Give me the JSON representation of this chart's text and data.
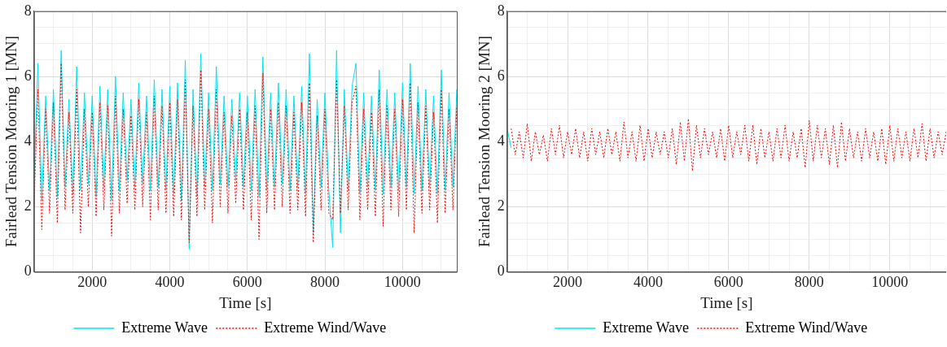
{
  "chart_data": [
    {
      "type": "line",
      "xlabel": "Time [s]",
      "ylabel": "Fairlead Tension Mooring 1 [MN]",
      "xlim": [
        500,
        11400
      ],
      "ylim": [
        0,
        8
      ],
      "grid": true,
      "legend": "bottom",
      "marker": "none",
      "xticks": [
        {
          "value": 500,
          "label": null
        },
        {
          "value": 1000,
          "label": null
        },
        {
          "value": 1500,
          "label": null
        },
        2000,
        {
          "value": 2500,
          "label": null
        },
        {
          "value": 3000,
          "label": null
        },
        {
          "value": 3500,
          "label": null
        },
        4000,
        {
          "value": 4500,
          "label": null
        },
        {
          "value": 5000,
          "label": null
        },
        {
          "value": 5500,
          "label": null
        },
        6000,
        {
          "value": 6500,
          "label": null
        },
        {
          "value": 7000,
          "label": null
        },
        {
          "value": 7500,
          "label": null
        },
        8000,
        {
          "value": 8500,
          "label": null
        },
        {
          "value": 9000,
          "label": null
        },
        {
          "value": 9500,
          "label": null
        },
        10000,
        {
          "value": 10500,
          "label": null
        },
        {
          "value": 11000,
          "label": null
        }
      ],
      "yticks": [
        0,
        {
          "value": 0.5,
          "label": null
        },
        {
          "value": 1,
          "label": null
        },
        {
          "value": 1.5,
          "label": null
        },
        2,
        {
          "value": 2.5,
          "label": null
        },
        {
          "value": 3,
          "label": null
        },
        {
          "value": 3.5,
          "label": null
        },
        4,
        {
          "value": 4.5,
          "label": null
        },
        {
          "value": 5,
          "label": null
        },
        {
          "value": 5.5,
          "label": null
        },
        6,
        {
          "value": 6.5,
          "label": null
        },
        {
          "value": 7,
          "label": null
        },
        {
          "value": 7.5,
          "label": null
        },
        8
      ],
      "x": [
        500,
        600,
        700,
        800,
        900,
        1000,
        1100,
        1200,
        1300,
        1400,
        1500,
        1600,
        1700,
        1800,
        1900,
        2000,
        2100,
        2200,
        2300,
        2400,
        2500,
        2600,
        2700,
        2800,
        2900,
        3000,
        3100,
        3200,
        3300,
        3400,
        3500,
        3600,
        3700,
        3800,
        3900,
        4000,
        4100,
        4200,
        4300,
        4400,
        4500,
        4600,
        4700,
        4800,
        4900,
        5000,
        5100,
        5200,
        5300,
        5400,
        5500,
        5600,
        5700,
        5800,
        5900,
        6000,
        6100,
        6200,
        6300,
        6400,
        6500,
        6600,
        6700,
        6800,
        6900,
        7000,
        7100,
        7200,
        7300,
        7400,
        7500,
        7600,
        7700,
        7800,
        7900,
        8000,
        8100,
        8200,
        8300,
        8400,
        8500,
        8600,
        8700,
        8800,
        8900,
        9000,
        9100,
        9200,
        9300,
        9400,
        9500,
        9600,
        9700,
        9800,
        9900,
        10000,
        10100,
        10200,
        10300,
        10400,
        10500,
        10600,
        10700,
        10800,
        10900,
        11000,
        11100,
        11200,
        11300,
        11400
      ],
      "series": [
        {
          "name": "Extreme Wave",
          "color": "#00e5ee",
          "line_style": "solid",
          "values": [
            2.8,
            6.4,
            2.2,
            5.4,
            2.5,
            5.6,
            2.3,
            6.8,
            2.6,
            5.3,
            2.4,
            6.3,
            2.5,
            5.5,
            2.7,
            5.4,
            2.3,
            5.7,
            2.6,
            5.6,
            2.2,
            6.0,
            2.5,
            5.5,
            2.8,
            5.3,
            2.6,
            5.8,
            2.7,
            5.4,
            2.5,
            5.9,
            2.6,
            5.6,
            2.5,
            5.7,
            2.4,
            5.8,
            2.2,
            6.5,
            0.7,
            5.6,
            2.3,
            6.7,
            2.6,
            5.5,
            2.5,
            6.3,
            2.7,
            5.4,
            2.6,
            5.3,
            2.8,
            5.5,
            2.6,
            5.4,
            2.5,
            5.6,
            2.3,
            6.6,
            2.5,
            5.5,
            2.6,
            5.8,
            2.7,
            5.6,
            2.5,
            5.4,
            2.6,
            5.7,
            2.4,
            6.7,
            1.2,
            5.3,
            2.6,
            5.5,
            2.5,
            0.75,
            6.8,
            1.2,
            5.6,
            2.5,
            5.7,
            6.4,
            2.4,
            5.5,
            2.6,
            5.4,
            2.5,
            6.2,
            2.4,
            5.6,
            2.6,
            5.5,
            2.5,
            5.8,
            2.6,
            6.4,
            2.4,
            5.7,
            2.5,
            5.6,
            2.6,
            5.4,
            2.4,
            6.2,
            2.5,
            5.5,
            2.6,
            5.6
          ]
        },
        {
          "name": "Extreme Wind/Wave",
          "color": "#ff0000",
          "line_style": "dotted",
          "values": [
            2.0,
            5.6,
            1.3,
            5.0,
            1.8,
            5.2,
            1.5,
            6.4,
            1.9,
            4.9,
            1.8,
            5.6,
            1.2,
            5.0,
            2.0,
            4.9,
            1.7,
            5.2,
            1.9,
            5.1,
            1.1,
            5.4,
            1.8,
            5.0,
            2.1,
            4.8,
            1.9,
            5.3,
            2.0,
            4.9,
            1.6,
            5.4,
            1.9,
            5.1,
            1.8,
            5.2,
            1.7,
            5.3,
            1.6,
            5.9,
            0.9,
            5.1,
            1.7,
            6.2,
            1.9,
            5.0,
            1.5,
            5.6,
            2.0,
            4.9,
            1.8,
            4.8,
            2.1,
            5.0,
            1.9,
            4.9,
            1.6,
            5.1,
            1.0,
            6.1,
            1.8,
            5.0,
            1.9,
            5.2,
            2.0,
            5.1,
            1.8,
            4.9,
            1.9,
            5.2,
            1.7,
            5.8,
            0.9,
            4.8,
            1.9,
            5.0,
            1.8,
            1.6,
            5.9,
            1.8,
            5.1,
            1.9,
            5.2,
            5.7,
            1.6,
            5.0,
            1.9,
            4.9,
            1.7,
            5.6,
            1.4,
            5.1,
            1.9,
            5.0,
            1.7,
            5.3,
            1.9,
            5.8,
            1.2,
            5.2,
            1.8,
            5.1,
            1.9,
            4.9,
            1.5,
            5.6,
            1.8,
            5.0,
            1.9,
            5.1
          ]
        }
      ]
    },
    {
      "type": "line",
      "xlabel": "Time [s]",
      "ylabel": "Fairlead Tension Mooring 2 [MN]",
      "xlim": [
        500,
        11400
      ],
      "ylim": [
        0,
        8
      ],
      "grid": true,
      "legend": "bottom",
      "marker": "none",
      "xticks": [
        {
          "value": 500,
          "label": null
        },
        {
          "value": 1000,
          "label": null
        },
        {
          "value": 1500,
          "label": null
        },
        2000,
        {
          "value": 2500,
          "label": null
        },
        {
          "value": 3000,
          "label": null
        },
        {
          "value": 3500,
          "label": null
        },
        4000,
        {
          "value": 4500,
          "label": null
        },
        {
          "value": 5000,
          "label": null
        },
        {
          "value": 5500,
          "label": null
        },
        6000,
        {
          "value": 6500,
          "label": null
        },
        {
          "value": 7000,
          "label": null
        },
        {
          "value": 7500,
          "label": null
        },
        8000,
        {
          "value": 8500,
          "label": null
        },
        {
          "value": 9000,
          "label": null
        },
        {
          "value": 9500,
          "label": null
        },
        10000,
        {
          "value": 10500,
          "label": null
        },
        {
          "value": 11000,
          "label": null
        }
      ],
      "yticks": [
        0,
        {
          "value": 0.5,
          "label": null
        },
        {
          "value": 1,
          "label": null
        },
        {
          "value": 1.5,
          "label": null
        },
        2,
        {
          "value": 2.5,
          "label": null
        },
        {
          "value": 3,
          "label": null
        },
        {
          "value": 3.5,
          "label": null
        },
        4,
        {
          "value": 4.5,
          "label": null
        },
        {
          "value": 5,
          "label": null
        },
        {
          "value": 5.5,
          "label": null
        },
        6,
        {
          "value": 6.5,
          "label": null
        },
        {
          "value": 7,
          "label": null
        },
        {
          "value": 7.5,
          "label": null
        },
        8
      ],
      "x": [
        500,
        600,
        700,
        800,
        900,
        1000,
        1100,
        1200,
        1300,
        1400,
        1500,
        1600,
        1700,
        1800,
        1900,
        2000,
        2100,
        2200,
        2300,
        2400,
        2500,
        2600,
        2700,
        2800,
        2900,
        3000,
        3100,
        3200,
        3300,
        3400,
        3500,
        3600,
        3700,
        3800,
        3900,
        4000,
        4100,
        4200,
        4300,
        4400,
        4500,
        4600,
        4700,
        4800,
        4900,
        5000,
        5100,
        5200,
        5300,
        5400,
        5500,
        5600,
        5700,
        5800,
        5900,
        6000,
        6100,
        6200,
        6300,
        6400,
        6500,
        6600,
        6700,
        6800,
        6900,
        7000,
        7100,
        7200,
        7300,
        7400,
        7500,
        7600,
        7700,
        7800,
        7900,
        8000,
        8100,
        8200,
        8300,
        8400,
        8500,
        8600,
        8700,
        8800,
        8900,
        9000,
        9100,
        9200,
        9300,
        9400,
        9500,
        9600,
        9700,
        9800,
        9900,
        10000,
        10100,
        10200,
        10300,
        10400,
        10500,
        10600,
        10700,
        10800,
        10900,
        11000,
        11100,
        11200,
        11300,
        11400
      ],
      "series": [
        {
          "name": "Extreme Wave",
          "color": "#00e5ee",
          "line_style": "solid",
          "values": [
            4.4,
            3.8,
            null,
            null,
            null,
            null,
            null,
            null,
            null,
            null,
            null,
            null,
            null,
            null,
            null,
            null,
            null,
            null,
            null,
            null,
            null,
            null,
            null,
            null,
            null,
            null,
            null,
            null,
            null,
            null,
            null,
            null,
            null,
            null,
            null,
            null,
            null,
            null,
            null,
            null,
            null,
            null,
            null,
            null,
            null,
            null,
            null,
            null,
            null,
            null,
            null,
            null,
            null,
            null,
            null,
            null,
            null,
            null,
            null,
            null,
            null,
            null,
            null,
            null,
            null,
            null,
            null,
            null,
            null,
            null,
            null,
            null,
            null,
            null,
            null,
            null,
            null,
            null,
            null,
            null,
            null,
            null,
            null,
            null,
            null,
            null,
            null,
            null,
            null,
            null,
            null,
            null,
            null,
            null,
            null,
            null,
            null,
            null,
            null,
            null,
            null,
            null,
            null,
            null,
            null,
            null,
            null,
            null,
            null,
            null
          ]
        },
        {
          "name": "Extreme Wind/Wave",
          "color": "#ff0000",
          "line_style": "dotted",
          "values": [
            null,
            4.4,
            3.6,
            4.3,
            3.5,
            4.55,
            3.4,
            4.3,
            3.6,
            4.2,
            3.4,
            4.4,
            3.6,
            4.5,
            3.5,
            4.3,
            3.6,
            4.4,
            3.5,
            4.3,
            3.4,
            4.4,
            3.6,
            4.3,
            3.5,
            4.4,
            3.6,
            4.3,
            3.4,
            4.6,
            3.5,
            4.3,
            3.4,
            4.5,
            3.4,
            4.4,
            3.5,
            4.3,
            3.6,
            4.3,
            3.5,
            4.4,
            3.3,
            4.6,
            3.4,
            4.7,
            3.1,
            4.5,
            3.5,
            4.4,
            3.6,
            4.3,
            3.5,
            4.4,
            3.4,
            4.5,
            3.5,
            4.3,
            3.6,
            4.5,
            3.4,
            4.5,
            3.3,
            4.4,
            3.5,
            4.3,
            3.4,
            4.4,
            3.5,
            4.5,
            3.4,
            4.3,
            3.5,
            4.4,
            3.2,
            4.65,
            3.4,
            4.5,
            3.5,
            4.4,
            3.3,
            4.5,
            3.2,
            4.6,
            3.4,
            4.4,
            3.5,
            4.3,
            3.4,
            4.4,
            3.5,
            4.3,
            3.4,
            4.4,
            3.3,
            4.5,
            3.4,
            4.4,
            3.5,
            4.3,
            3.4,
            4.4,
            3.5,
            4.55,
            3.4,
            4.4,
            3.5,
            4.3,
            3.6,
            4.3
          ]
        }
      ]
    }
  ]
}
